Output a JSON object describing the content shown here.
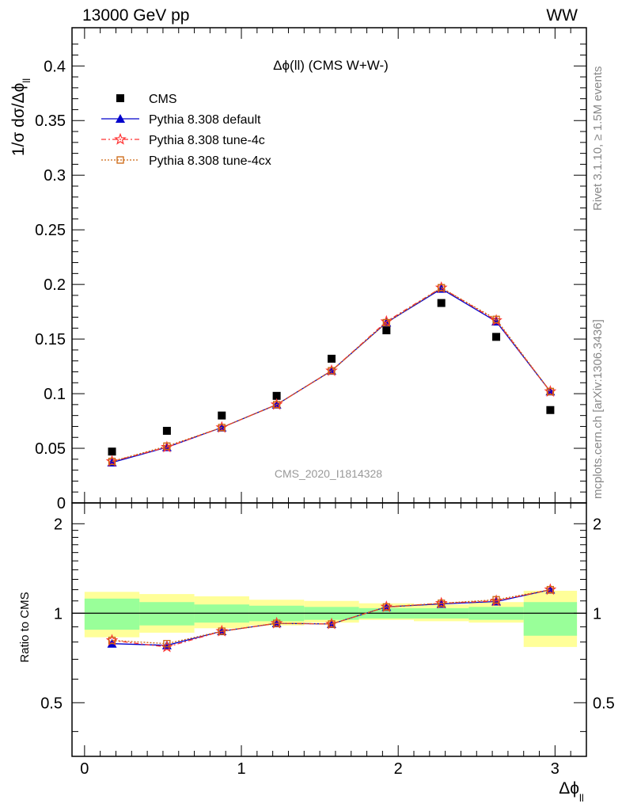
{
  "header": {
    "left": "13000 GeV pp",
    "right": "WW",
    "rivet": "Rivet 3.1.10, ≥ 1.5M events",
    "mcplots": "mcplots.cern.ch [arXiv:1306.3436]"
  },
  "chart_data": {
    "type": "scatter",
    "title": "Δϕ(ll) (CMS W+W-)",
    "watermark": "CMS_2020_I1814328",
    "xlabel": "Δϕ",
    "xlabel_sub": "ll",
    "ylabel": "1/σ dσ/Δϕ",
    "ylabel_sub": "ll",
    "ratio_ylabel": "Ratio to CMS",
    "xlim": [
      -0.08,
      3.2
    ],
    "ylim": [
      0,
      0.435
    ],
    "ratio_ylim": [
      0.33,
      2.35
    ],
    "ratio_log": true,
    "xticks": [
      0,
      1,
      2,
      3
    ],
    "yticks": [
      {
        "v": 0,
        "label": "0"
      },
      {
        "v": 0.05,
        "label": "0.05"
      },
      {
        "v": 0.1,
        "label": "0.1"
      },
      {
        "v": 0.15,
        "label": "0.15"
      },
      {
        "v": 0.2,
        "label": "0.2"
      },
      {
        "v": 0.25,
        "label": "0.25"
      },
      {
        "v": 0.3,
        "label": "0.3"
      },
      {
        "v": 0.35,
        "label": "0.35"
      },
      {
        "v": 0.4,
        "label": "0.4"
      }
    ],
    "ratio_yticks": [
      {
        "v": 0.5,
        "label": "0.5"
      },
      {
        "v": 1,
        "label": "1"
      },
      {
        "v": 2,
        "label": "2"
      }
    ],
    "x": [
      0.175,
      0.525,
      0.875,
      1.225,
      1.575,
      1.925,
      2.275,
      2.625,
      2.97
    ],
    "bin_edges": [
      0,
      0.35,
      0.7,
      1.05,
      1.4,
      1.75,
      2.1,
      2.45,
      2.8,
      3.14
    ],
    "band_inner": [
      [
        0.88,
        1.12
      ],
      [
        0.91,
        1.09
      ],
      [
        0.93,
        1.07
      ],
      [
        0.94,
        1.06
      ],
      [
        0.95,
        1.05
      ],
      [
        0.96,
        1.04
      ],
      [
        0.96,
        1.04
      ],
      [
        0.95,
        1.05
      ],
      [
        0.84,
        1.09
      ]
    ],
    "band_outer": [
      [
        0.83,
        1.18
      ],
      [
        0.86,
        1.16
      ],
      [
        0.89,
        1.14
      ],
      [
        0.91,
        1.11
      ],
      [
        0.93,
        1.1
      ],
      [
        0.95,
        1.08
      ],
      [
        0.94,
        1.07
      ],
      [
        0.93,
        1.09
      ],
      [
        0.77,
        1.19
      ]
    ],
    "series": [
      {
        "name": "CMS",
        "color": "#000000",
        "marker": "square",
        "dash": "none",
        "values": [
          0.047,
          0.066,
          0.08,
          0.098,
          0.132,
          0.158,
          0.183,
          0.152,
          0.085
        ],
        "ratio": [
          1,
          1,
          1,
          1,
          1,
          1,
          1,
          1,
          1
        ]
      },
      {
        "name": "Pythia 8.308 default",
        "color": "#0000cc",
        "marker": "triangle",
        "dash": "none",
        "values": [
          0.037,
          0.051,
          0.069,
          0.09,
          0.121,
          0.165,
          0.196,
          0.166,
          0.102
        ],
        "ratio": [
          0.79,
          0.78,
          0.87,
          0.925,
          0.92,
          1.05,
          1.075,
          1.095,
          1.2
        ]
      },
      {
        "name": "Pythia 8.308 tune-4c",
        "color": "#ff3333",
        "marker": "star",
        "dash": "6,3,2,3",
        "values": [
          0.038,
          0.051,
          0.069,
          0.09,
          0.121,
          0.166,
          0.197,
          0.167,
          0.102
        ],
        "ratio": [
          0.81,
          0.77,
          0.87,
          0.925,
          0.92,
          1.05,
          1.08,
          1.1,
          1.2
        ]
      },
      {
        "name": "Pythia 8.308 tune-4cx",
        "color": "#cc6611",
        "marker": "square-open",
        "dash": "2,2",
        "values": [
          0.038,
          0.052,
          0.069,
          0.09,
          0.121,
          0.165,
          0.197,
          0.168,
          0.102
        ],
        "ratio": [
          0.81,
          0.79,
          0.87,
          0.925,
          0.92,
          1.05,
          1.08,
          1.11,
          1.2
        ]
      }
    ]
  }
}
